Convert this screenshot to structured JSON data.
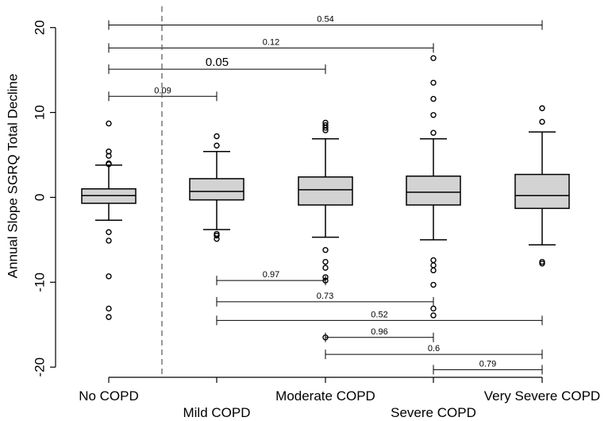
{
  "chart_data": {
    "type": "boxplot",
    "ylabel": "Annual Slope SGRQ Total Decline",
    "ylim": [
      -21.2,
      22.5
    ],
    "yticks": [
      -20,
      -10,
      0,
      10,
      20
    ],
    "categories": [
      "No COPD",
      "Mild COPD",
      "Moderate COPD",
      "Severe COPD",
      "Very Severe COPD"
    ],
    "box_fill": "#d3d3d3",
    "separator_after_category": "No COPD",
    "boxes": [
      {
        "category": "No COPD",
        "whisker_low": -2.7,
        "q1": -0.7,
        "median": 0.2,
        "q3": 1.0,
        "whisker_high": 3.8,
        "outliers": [
          8.7,
          5.4,
          4.9,
          4.0,
          3.9,
          -4.1,
          -5.1,
          -9.3,
          -13.1,
          -14.1
        ]
      },
      {
        "category": "Mild COPD",
        "whisker_low": -3.8,
        "q1": -0.3,
        "median": 0.7,
        "q3": 2.2,
        "whisker_high": 5.4,
        "outliers": [
          7.2,
          6.1,
          -4.3,
          -4.5,
          -4.9
        ]
      },
      {
        "category": "Moderate COPD",
        "whisker_low": -4.7,
        "q1": -0.9,
        "median": 0.9,
        "q3": 2.4,
        "whisker_high": 6.9,
        "outliers": [
          8.8,
          8.5,
          8.2,
          7.9,
          -6.2,
          -7.6,
          -8.3,
          -9.4,
          -9.8,
          -16.5
        ]
      },
      {
        "category": "Severe COPD",
        "whisker_low": -5.0,
        "q1": -0.9,
        "median": 0.6,
        "q3": 2.5,
        "whisker_high": 6.9,
        "outliers": [
          16.4,
          13.5,
          11.6,
          9.7,
          7.6,
          -7.4,
          -8.0,
          -8.6,
          -10.3,
          -13.1,
          -13.9
        ]
      },
      {
        "category": "Very Severe COPD",
        "whisker_low": -5.6,
        "q1": -1.3,
        "median": 0.2,
        "q3": 2.7,
        "whisker_high": 7.7,
        "outliers": [
          10.5,
          8.9,
          -7.6,
          -7.8
        ]
      }
    ],
    "comparisons": [
      {
        "from": "No COPD",
        "to": "Very Severe COPD",
        "y": 20.3,
        "label": "0.54",
        "size": "small"
      },
      {
        "from": "No COPD",
        "to": "Severe COPD",
        "y": 17.6,
        "label": "0.12",
        "size": "small"
      },
      {
        "from": "No COPD",
        "to": "Moderate COPD",
        "y": 15.1,
        "label": "0.05",
        "size": "big"
      },
      {
        "from": "No COPD",
        "to": "Mild COPD",
        "y": 11.9,
        "label": "0.09",
        "size": "small"
      },
      {
        "from": "Mild COPD",
        "to": "Moderate COPD",
        "y": -9.8,
        "label": "0.97",
        "size": "small"
      },
      {
        "from": "Mild COPD",
        "to": "Severe COPD",
        "y": -12.3,
        "label": "0.73",
        "size": "small"
      },
      {
        "from": "Mild COPD",
        "to": "Very Severe COPD",
        "y": -14.5,
        "label": "0.52",
        "size": "small"
      },
      {
        "from": "Moderate COPD",
        "to": "Severe COPD",
        "y": -16.5,
        "label": "0.96",
        "size": "small"
      },
      {
        "from": "Moderate COPD",
        "to": "Very Severe COPD",
        "y": -18.5,
        "label": "0.6",
        "size": "small"
      },
      {
        "from": "Severe COPD",
        "to": "Very Severe COPD",
        "y": -20.3,
        "label": "0.79",
        "size": "small"
      }
    ]
  }
}
